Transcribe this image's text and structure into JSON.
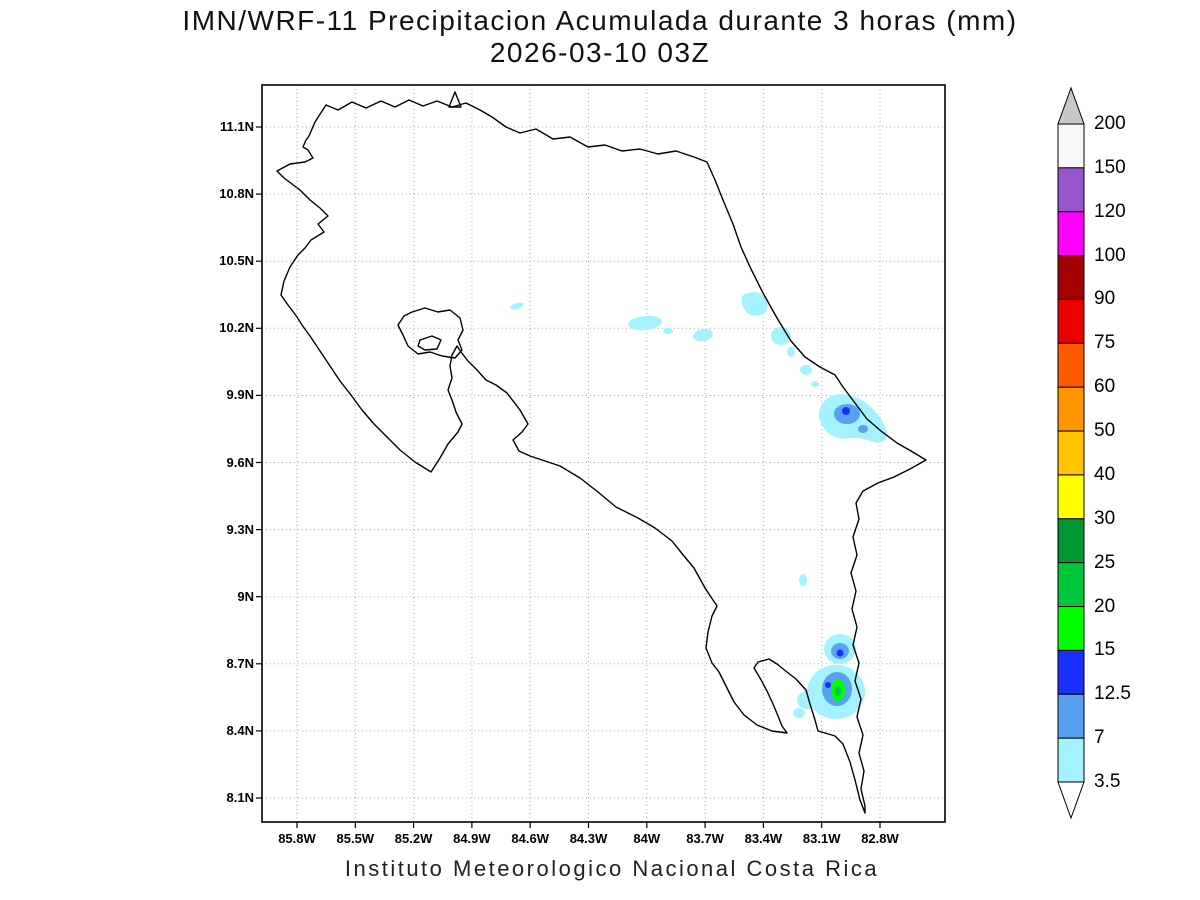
{
  "title": {
    "line1": "IMN/WRF-11 Precipitacion Acumulada durante 3 horas (mm)",
    "line2": "2026-03-10 03Z"
  },
  "footer": {
    "caption": "Instituto Meteorologico Nacional Costa Rica"
  },
  "axes": {
    "y_ticks": [
      "11.1N",
      "10.8N",
      "10.5N",
      "10.2N",
      "9.9N",
      "9.6N",
      "9.3N",
      "9N",
      "8.7N",
      "8.4N",
      "8.1N"
    ],
    "x_ticks": [
      "85.8W",
      "85.5W",
      "85.2W",
      "84.9W",
      "84.6W",
      "84.3W",
      "84W",
      "83.7W",
      "83.4W",
      "83.1W",
      "82.8W"
    ]
  },
  "colorbar": {
    "labels": [
      "200",
      "150",
      "120",
      "100",
      "90",
      "75",
      "60",
      "50",
      "40",
      "30",
      "25",
      "20",
      "15",
      "12.5",
      "7",
      "3.5"
    ],
    "segment_colors_bottom_to_top": [
      "#a5f2ff",
      "#5aa0f0",
      "#1930ff",
      "#00ff00",
      "#00c83c",
      "#009632",
      "#ffff00",
      "#ffc300",
      "#ff9600",
      "#ff5a00",
      "#eb0000",
      "#a50000",
      "#ff00ff",
      "#9955cc",
      "#f8f8f8"
    ],
    "above_max_color": "#c8c8c8",
    "below_min_color": "#ffffff"
  },
  "chart_data": {
    "type": "heatmap",
    "title": "IMN/WRF-11 Precipitacion Acumulada durante 3 horas (mm)",
    "subtitle": "2026-03-10 03Z",
    "region": "Costa Rica",
    "units": "mm",
    "xlabel_ticks": [
      "85.8W",
      "85.5W",
      "85.2W",
      "84.9W",
      "84.6W",
      "84.3W",
      "84W",
      "83.7W",
      "83.4W",
      "83.1W",
      "82.8W"
    ],
    "ylabel_ticks": [
      "11.1N",
      "10.8N",
      "10.5N",
      "10.2N",
      "9.9N",
      "9.6N",
      "9.3N",
      "9N",
      "8.7N",
      "8.4N",
      "8.1N"
    ],
    "levels_mm": [
      3.5,
      7,
      12.5,
      15,
      20,
      25,
      30,
      40,
      50,
      60,
      75,
      90,
      100,
      120,
      150,
      200
    ],
    "legend_position": "right",
    "grid": "dotted",
    "features": [
      {
        "name": "scattered-light-cells-north-central",
        "approx_location": "10.1N-10.3N, 84.6W-83.4W",
        "max_intensity_mm": "3.5-7"
      },
      {
        "name": "caribbean-coast-cell-near-limon",
        "approx_location": "9.8N, 83.1W",
        "max_intensity_mm": "12.5-15"
      },
      {
        "name": "small-cell-inland-south",
        "approx_location": "9.0N, 83.2W",
        "max_intensity_mm": "3.5-7"
      },
      {
        "name": "south-pacific-cells-osa-golfo-dulce",
        "approx_location": "8.5N-8.7N, 83.1W",
        "max_intensity_mm": "20-25"
      }
    ]
  }
}
